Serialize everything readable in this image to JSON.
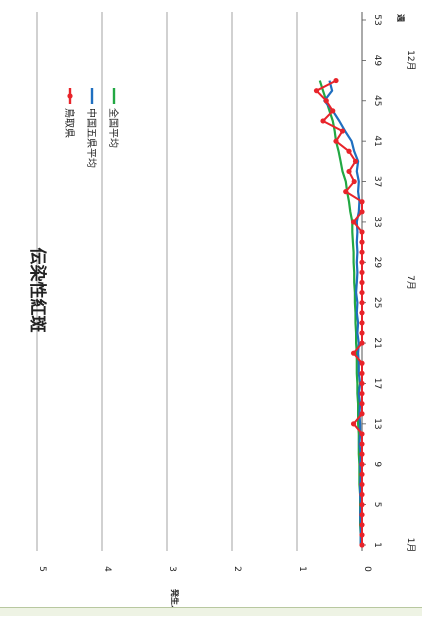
{
  "chart_data": {
    "type": "line",
    "title": "伝染性紅斑",
    "ylabel": "発生人数",
    "xlabel": "週",
    "ylim": [
      0,
      5
    ],
    "yticks": [
      0,
      1,
      2,
      3,
      4,
      5
    ],
    "xticks": [
      1,
      5,
      9,
      13,
      17,
      21,
      25,
      29,
      33,
      37,
      41,
      45,
      49,
      53
    ],
    "month_labels": [
      {
        "label": "1月",
        "week": 1
      },
      {
        "label": "7月",
        "week": 27
      },
      {
        "label": "12月",
        "week": 49
      }
    ],
    "grid": true,
    "legend_position": "top-right",
    "series": [
      {
        "name": "鳥取県",
        "color": "#e8242a",
        "marker": true,
        "x": [
          1,
          2,
          3,
          4,
          5,
          6,
          7,
          8,
          9,
          10,
          11,
          12,
          13,
          14,
          15,
          16,
          17,
          18,
          19,
          20,
          21,
          22,
          23,
          24,
          25,
          26,
          27,
          28,
          29,
          30,
          31,
          32,
          33,
          34,
          35,
          36,
          37,
          38,
          39,
          40,
          41,
          42,
          43,
          44,
          45,
          46,
          47
        ],
        "values": [
          0,
          0,
          0,
          0,
          0,
          0,
          0,
          0,
          0,
          0,
          0,
          0,
          0.13,
          0,
          0,
          0,
          0,
          0,
          0,
          0.13,
          0,
          0,
          0,
          0,
          0,
          0,
          0,
          0,
          0,
          0,
          0,
          0,
          0.13,
          0,
          0,
          0.25,
          0.12,
          0.2,
          0.1,
          0.2,
          0.4,
          0.3,
          0.6,
          0.45,
          0.55,
          0.7,
          0.4
        ]
      },
      {
        "name": "中国五県平均",
        "color": "#1f6fc0",
        "marker": false,
        "x": [
          1,
          2,
          3,
          4,
          5,
          6,
          7,
          8,
          9,
          10,
          11,
          12,
          13,
          14,
          15,
          16,
          17,
          18,
          19,
          20,
          21,
          22,
          23,
          24,
          25,
          26,
          27,
          28,
          29,
          30,
          31,
          32,
          33,
          34,
          35,
          36,
          37,
          38,
          39,
          40,
          41,
          42,
          43,
          44,
          45,
          46,
          47
        ],
        "values": [
          0.02,
          0.02,
          0.02,
          0.03,
          0.02,
          0.03,
          0.03,
          0.02,
          0.03,
          0.02,
          0.04,
          0.03,
          0.03,
          0.04,
          0.03,
          0.05,
          0.03,
          0.05,
          0.05,
          0.06,
          0.05,
          0.07,
          0.06,
          0.08,
          0.07,
          0.09,
          0.08,
          0.07,
          0.08,
          0.07,
          0.08,
          0.07,
          0.08,
          0.05,
          0.04,
          0.06,
          0.05,
          0.08,
          0.06,
          0.12,
          0.16,
          0.26,
          0.35,
          0.45,
          0.58,
          0.46,
          0.5
        ]
      },
      {
        "name": "全国平均",
        "color": "#22a843",
        "marker": false,
        "x": [
          1,
          2,
          3,
          4,
          5,
          6,
          7,
          8,
          9,
          10,
          11,
          12,
          13,
          14,
          15,
          16,
          17,
          18,
          19,
          20,
          21,
          22,
          23,
          24,
          25,
          26,
          27,
          28,
          29,
          30,
          31,
          32,
          33,
          34,
          35,
          36,
          37,
          38,
          39,
          40,
          41,
          42,
          43,
          44,
          45,
          46,
          47
        ],
        "values": [
          0.02,
          0.02,
          0.03,
          0.03,
          0.03,
          0.03,
          0.04,
          0.04,
          0.04,
          0.05,
          0.05,
          0.05,
          0.06,
          0.06,
          0.06,
          0.07,
          0.07,
          0.08,
          0.08,
          0.08,
          0.09,
          0.09,
          0.1,
          0.1,
          0.11,
          0.11,
          0.12,
          0.12,
          0.13,
          0.13,
          0.14,
          0.15,
          0.15,
          0.18,
          0.2,
          0.23,
          0.25,
          0.3,
          0.33,
          0.36,
          0.4,
          0.42,
          0.45,
          0.5,
          0.55,
          0.6,
          0.65
        ]
      }
    ]
  }
}
